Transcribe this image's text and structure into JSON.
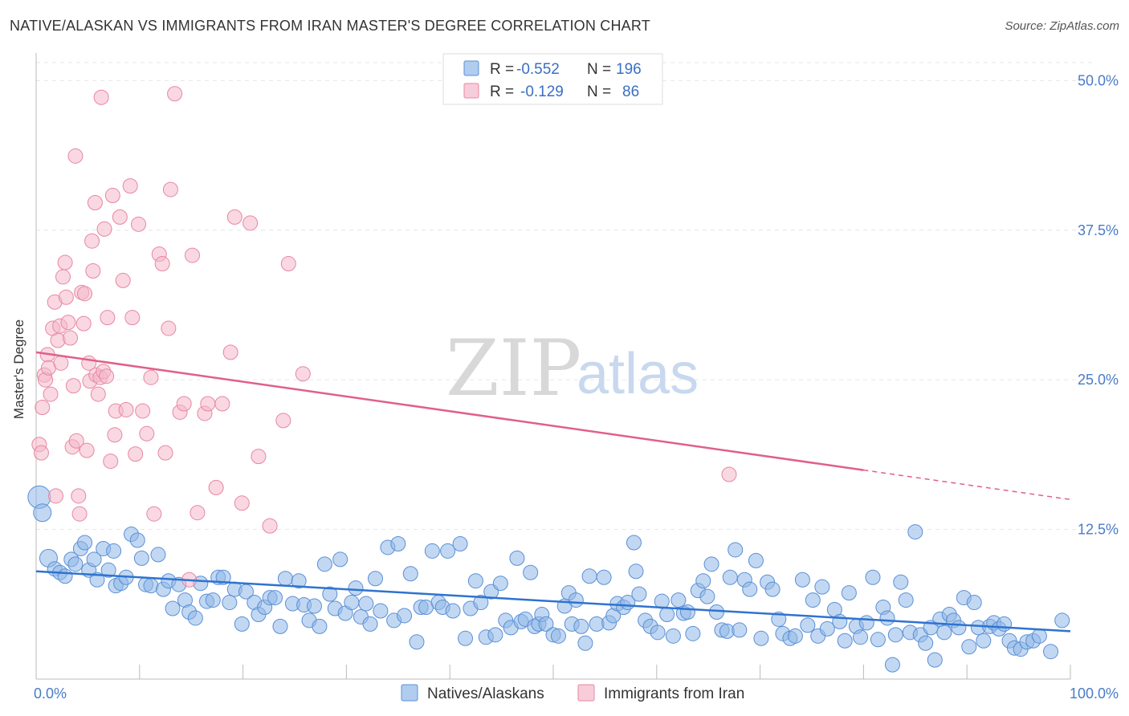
{
  "chart_data": {
    "type": "scatter",
    "title": "NATIVE/ALASKAN VS IMMIGRANTS FROM IRAN MASTER'S DEGREE CORRELATION CHART",
    "source": "Source: ZipAtlas.com",
    "xlabel": "",
    "ylabel": "Master's Degree",
    "xlim": [
      0,
      100
    ],
    "ylim": [
      0,
      51.5
    ],
    "x_tick_labels": [
      {
        "value": 0,
        "label": "0.0%"
      },
      {
        "value": 100,
        "label": "100.0%"
      }
    ],
    "y_tick_labels": [
      {
        "value": 12.5,
        "label": "12.5%"
      },
      {
        "value": 25.0,
        "label": "25.0%"
      },
      {
        "value": 37.5,
        "label": "37.5%"
      },
      {
        "value": 50.0,
        "label": "50.0%"
      }
    ],
    "watermark": {
      "part1": "ZIP",
      "part2": "atlas"
    },
    "legend": [
      {
        "r_label": "R =",
        "r_value": "-0.552",
        "n_label": "N =",
        "n_value": "196"
      },
      {
        "r_label": "R =",
        "r_value": "-0.129",
        "n_label": "N =",
        "n_value": "86"
      }
    ],
    "series": [
      {
        "name": "Natives/Alaskans",
        "color": "#8fb8e8",
        "stroke": "#5b8fd6",
        "line_color": "#2f73d0",
        "trend": {
          "x0": 0,
          "y0": 9.0,
          "x1": 100,
          "y1": 4.0,
          "solid_until": 100
        },
        "points": [
          [
            0.3,
            15.2
          ],
          [
            0.6,
            13.9
          ],
          [
            1.2,
            10.1
          ],
          [
            1.8,
            9.2
          ],
          [
            2.3,
            8.9
          ],
          [
            2.8,
            8.6
          ],
          [
            3.4,
            10.0
          ],
          [
            3.8,
            9.6
          ],
          [
            4.3,
            10.9
          ],
          [
            4.7,
            11.4
          ],
          [
            5.1,
            9.1
          ],
          [
            5.6,
            10.0
          ],
          [
            5.9,
            8.3
          ],
          [
            6.5,
            10.9
          ],
          [
            7.0,
            9.1
          ],
          [
            7.5,
            10.7
          ],
          [
            7.7,
            7.8
          ],
          [
            8.2,
            8.0
          ],
          [
            8.7,
            8.5
          ],
          [
            9.2,
            12.1
          ],
          [
            9.8,
            11.6
          ],
          [
            10.2,
            10.1
          ],
          [
            10.6,
            7.9
          ],
          [
            11.1,
            7.8
          ],
          [
            11.8,
            10.4
          ],
          [
            12.3,
            7.5
          ],
          [
            12.8,
            8.2
          ],
          [
            13.2,
            5.9
          ],
          [
            13.8,
            7.9
          ],
          [
            14.4,
            6.6
          ],
          [
            14.8,
            5.6
          ],
          [
            15.4,
            5.1
          ],
          [
            15.9,
            8.0
          ],
          [
            16.5,
            6.5
          ],
          [
            17.1,
            6.6
          ],
          [
            17.6,
            8.5
          ],
          [
            18.1,
            8.5
          ],
          [
            18.7,
            6.4
          ],
          [
            19.2,
            7.5
          ],
          [
            19.9,
            4.6
          ],
          [
            20.3,
            7.3
          ],
          [
            21.1,
            6.4
          ],
          [
            21.5,
            5.4
          ],
          [
            22.1,
            6.0
          ],
          [
            22.6,
            6.8
          ],
          [
            23.1,
            6.8
          ],
          [
            23.6,
            4.4
          ],
          [
            24.1,
            8.4
          ],
          [
            24.8,
            6.3
          ],
          [
            25.4,
            8.2
          ],
          [
            25.9,
            6.2
          ],
          [
            26.4,
            4.9
          ],
          [
            26.9,
            6.1
          ],
          [
            27.4,
            4.4
          ],
          [
            27.9,
            9.6
          ],
          [
            28.4,
            7.1
          ],
          [
            28.9,
            5.9
          ],
          [
            29.4,
            10.0
          ],
          [
            29.9,
            5.5
          ],
          [
            30.5,
            6.4
          ],
          [
            30.9,
            7.6
          ],
          [
            31.4,
            5.2
          ],
          [
            31.9,
            6.3
          ],
          [
            32.3,
            4.6
          ],
          [
            32.8,
            8.4
          ],
          [
            33.3,
            5.7
          ],
          [
            34.0,
            11.0
          ],
          [
            34.6,
            4.9
          ],
          [
            35.0,
            11.3
          ],
          [
            35.6,
            5.3
          ],
          [
            36.2,
            8.8
          ],
          [
            36.8,
            3.1
          ],
          [
            37.2,
            6.0
          ],
          [
            37.7,
            6.0
          ],
          [
            38.3,
            10.7
          ],
          [
            38.9,
            6.4
          ],
          [
            39.3,
            6.0
          ],
          [
            39.8,
            10.7
          ],
          [
            40.3,
            5.7
          ],
          [
            41.0,
            11.3
          ],
          [
            41.5,
            3.4
          ],
          [
            42.0,
            5.9
          ],
          [
            42.5,
            8.2
          ],
          [
            43.0,
            6.4
          ],
          [
            43.5,
            3.5
          ],
          [
            44.0,
            7.3
          ],
          [
            44.4,
            3.7
          ],
          [
            44.9,
            8.0
          ],
          [
            45.4,
            4.9
          ],
          [
            45.9,
            4.3
          ],
          [
            46.5,
            10.1
          ],
          [
            46.9,
            4.8
          ],
          [
            47.3,
            5.0
          ],
          [
            47.8,
            8.9
          ],
          [
            48.2,
            4.4
          ],
          [
            48.6,
            4.6
          ],
          [
            48.9,
            5.4
          ],
          [
            49.3,
            4.6
          ],
          [
            50.0,
            3.7
          ],
          [
            50.5,
            3.6
          ],
          [
            51.1,
            6.1
          ],
          [
            51.5,
            7.2
          ],
          [
            51.8,
            4.6
          ],
          [
            52.2,
            6.6
          ],
          [
            52.7,
            4.4
          ],
          [
            53.1,
            3.0
          ],
          [
            53.5,
            8.6
          ],
          [
            54.2,
            4.6
          ],
          [
            54.9,
            8.5
          ],
          [
            55.4,
            4.7
          ],
          [
            55.8,
            5.3
          ],
          [
            56.2,
            6.3
          ],
          [
            56.8,
            6.0
          ],
          [
            57.2,
            6.4
          ],
          [
            57.8,
            11.4
          ],
          [
            58.0,
            9.0
          ],
          [
            58.3,
            7.1
          ],
          [
            58.9,
            4.9
          ],
          [
            59.4,
            4.4
          ],
          [
            60.1,
            3.9
          ],
          [
            60.5,
            6.5
          ],
          [
            61.0,
            5.4
          ],
          [
            61.6,
            3.6
          ],
          [
            62.1,
            6.6
          ],
          [
            62.6,
            5.5
          ],
          [
            63.0,
            5.6
          ],
          [
            63.5,
            3.8
          ],
          [
            64.0,
            7.4
          ],
          [
            64.5,
            8.2
          ],
          [
            64.9,
            6.9
          ],
          [
            65.3,
            9.6
          ],
          [
            65.8,
            5.6
          ],
          [
            66.3,
            4.1
          ],
          [
            66.8,
            4.0
          ],
          [
            67.1,
            8.5
          ],
          [
            67.6,
            10.8
          ],
          [
            68.0,
            4.1
          ],
          [
            68.5,
            8.3
          ],
          [
            69.0,
            7.5
          ],
          [
            69.6,
            9.9
          ],
          [
            70.1,
            3.4
          ],
          [
            70.7,
            8.1
          ],
          [
            71.2,
            7.5
          ],
          [
            71.8,
            5.0
          ],
          [
            72.2,
            3.8
          ],
          [
            72.9,
            3.4
          ],
          [
            73.4,
            3.6
          ],
          [
            74.1,
            8.3
          ],
          [
            74.6,
            4.5
          ],
          [
            75.1,
            6.6
          ],
          [
            75.6,
            3.6
          ],
          [
            76.0,
            7.7
          ],
          [
            76.5,
            4.2
          ],
          [
            77.2,
            5.8
          ],
          [
            77.7,
            4.8
          ],
          [
            78.2,
            3.2
          ],
          [
            78.6,
            7.2
          ],
          [
            79.3,
            4.4
          ],
          [
            79.7,
            3.5
          ],
          [
            80.3,
            4.7
          ],
          [
            80.9,
            8.5
          ],
          [
            81.4,
            3.3
          ],
          [
            81.9,
            6.0
          ],
          [
            82.3,
            5.1
          ],
          [
            82.8,
            1.2
          ],
          [
            83.1,
            3.7
          ],
          [
            83.6,
            8.1
          ],
          [
            84.1,
            6.6
          ],
          [
            84.5,
            3.9
          ],
          [
            85.0,
            12.3
          ],
          [
            85.5,
            3.7
          ],
          [
            86.0,
            3.0
          ],
          [
            86.5,
            4.3
          ],
          [
            86.9,
            1.6
          ],
          [
            87.4,
            5.0
          ],
          [
            87.8,
            3.9
          ],
          [
            88.3,
            5.4
          ],
          [
            88.7,
            4.9
          ],
          [
            89.2,
            4.3
          ],
          [
            89.7,
            6.8
          ],
          [
            90.2,
            2.7
          ],
          [
            90.7,
            6.4
          ],
          [
            91.1,
            4.3
          ],
          [
            91.6,
            3.2
          ],
          [
            92.2,
            4.4
          ],
          [
            92.6,
            4.7
          ],
          [
            93.1,
            4.2
          ],
          [
            93.6,
            4.6
          ],
          [
            94.1,
            3.2
          ],
          [
            94.6,
            2.6
          ],
          [
            95.2,
            2.5
          ],
          [
            95.8,
            3.1
          ],
          [
            96.4,
            3.2
          ],
          [
            97.0,
            3.6
          ],
          [
            98.1,
            2.3
          ],
          [
            99.2,
            4.9
          ]
        ]
      },
      {
        "name": "Immigrants from Iran",
        "color": "#f4b8cc",
        "stroke": "#e8879f",
        "line_color": "#e0608a",
        "trend": {
          "x0": 0,
          "y0": 27.3,
          "x1": 100,
          "y1": 15.0,
          "solid_until": 80
        },
        "points": [
          [
            0.3,
            19.6
          ],
          [
            0.5,
            18.9
          ],
          [
            0.6,
            22.7
          ],
          [
            0.8,
            25.4
          ],
          [
            0.9,
            25.0
          ],
          [
            1.1,
            27.1
          ],
          [
            1.2,
            26.0
          ],
          [
            1.4,
            23.8
          ],
          [
            1.6,
            29.3
          ],
          [
            1.8,
            31.5
          ],
          [
            1.9,
            15.3
          ],
          [
            2.1,
            28.3
          ],
          [
            2.3,
            29.5
          ],
          [
            2.4,
            26.4
          ],
          [
            2.6,
            33.6
          ],
          [
            2.8,
            34.8
          ],
          [
            2.9,
            31.9
          ],
          [
            3.1,
            29.8
          ],
          [
            3.3,
            28.5
          ],
          [
            3.5,
            19.4
          ],
          [
            3.6,
            24.5
          ],
          [
            3.8,
            43.7
          ],
          [
            3.9,
            19.9
          ],
          [
            4.1,
            15.3
          ],
          [
            4.2,
            13.8
          ],
          [
            4.4,
            32.3
          ],
          [
            4.6,
            29.7
          ],
          [
            4.7,
            32.2
          ],
          [
            4.9,
            19.1
          ],
          [
            5.1,
            26.4
          ],
          [
            5.2,
            24.9
          ],
          [
            5.4,
            36.6
          ],
          [
            5.5,
            34.1
          ],
          [
            5.7,
            39.8
          ],
          [
            5.8,
            25.4
          ],
          [
            6.0,
            23.8
          ],
          [
            6.2,
            25.2
          ],
          [
            6.3,
            48.6
          ],
          [
            6.5,
            25.7
          ],
          [
            6.6,
            37.6
          ],
          [
            6.8,
            25.3
          ],
          [
            6.9,
            30.2
          ],
          [
            7.2,
            18.2
          ],
          [
            7.4,
            40.4
          ],
          [
            7.6,
            20.4
          ],
          [
            7.7,
            22.4
          ],
          [
            8.1,
            38.6
          ],
          [
            8.4,
            33.3
          ],
          [
            8.7,
            22.5
          ],
          [
            9.1,
            41.2
          ],
          [
            9.3,
            30.2
          ],
          [
            9.6,
            18.8
          ],
          [
            9.9,
            38.0
          ],
          [
            10.3,
            22.4
          ],
          [
            10.7,
            20.5
          ],
          [
            11.1,
            25.2
          ],
          [
            11.4,
            13.8
          ],
          [
            11.9,
            35.5
          ],
          [
            12.2,
            34.7
          ],
          [
            12.5,
            18.9
          ],
          [
            12.8,
            29.3
          ],
          [
            13.0,
            40.9
          ],
          [
            13.4,
            48.9
          ],
          [
            13.9,
            22.3
          ],
          [
            14.3,
            23.0
          ],
          [
            14.8,
            8.3
          ],
          [
            15.1,
            35.4
          ],
          [
            15.6,
            13.9
          ],
          [
            16.3,
            22.2
          ],
          [
            16.6,
            23.0
          ],
          [
            17.4,
            16.0
          ],
          [
            18.0,
            23.0
          ],
          [
            18.8,
            27.3
          ],
          [
            19.2,
            38.6
          ],
          [
            19.9,
            14.7
          ],
          [
            20.7,
            38.1
          ],
          [
            21.5,
            18.6
          ],
          [
            22.6,
            12.8
          ],
          [
            23.9,
            21.6
          ],
          [
            24.4,
            34.7
          ],
          [
            25.8,
            25.5
          ],
          [
            67.0,
            17.1
          ]
        ]
      }
    ]
  }
}
